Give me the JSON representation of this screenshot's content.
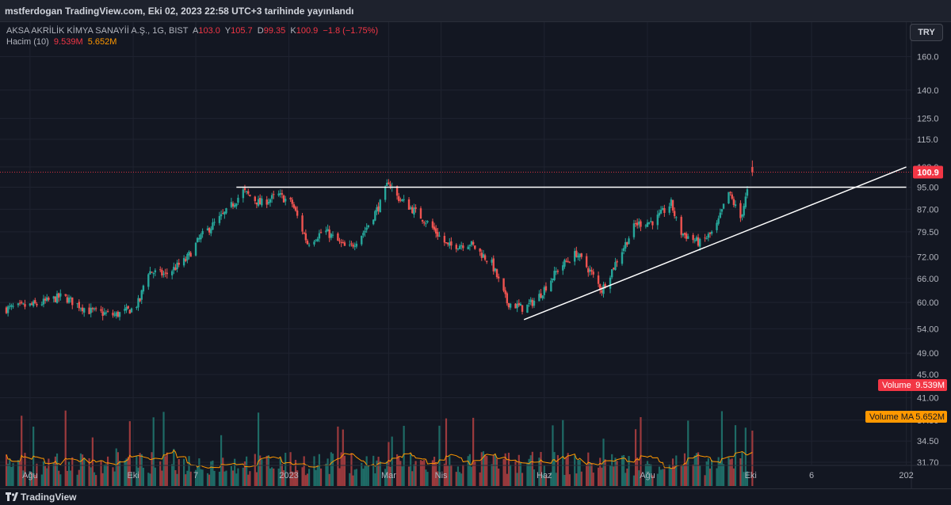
{
  "header": {
    "published": "mstferdogan TradingView.com, Eki 02, 2023 22:58 UTC+3 tarihinde yayınlandı"
  },
  "legend": {
    "symbol": "AKSA AKRİLİK KİMYA SANAYİİ A.Ş., 1G, BIST",
    "open_label": "A",
    "open": "103.0",
    "high_label": "Y",
    "high": "105.7",
    "low_label": "D",
    "low": "99.35",
    "close_label": "K",
    "close": "100.9",
    "change": "−1.8 (−1.75%)",
    "volume_label": "Hacim (10)",
    "volume": "9.539M",
    "volume_ma": "5.652M"
  },
  "currency_button": "TRY",
  "footer": {
    "brand": "TradingView"
  },
  "colors": {
    "background": "#131722",
    "up": "#26a69a",
    "down": "#ef5350",
    "volume_up": "#1e6b66",
    "volume_down": "#9c3a3d",
    "ma_line": "#ff9800",
    "trendline": "#ffffff",
    "price_tag": "#f23645"
  },
  "chart_data": {
    "type": "candlestick",
    "symbol": "AKSA",
    "interval": "1D",
    "y_scale": "log",
    "y_ticks": [
      160.0,
      140.0,
      125.0,
      115.0,
      103.0,
      95.0,
      87.0,
      79.5,
      72.0,
      66.0,
      60.0,
      54.0,
      49.0,
      45.0,
      41.0,
      37.5,
      34.5,
      31.7
    ],
    "y_tick_labels": [
      "160.0",
      "140.0",
      "125.0",
      "115.0",
      "103.0",
      "95.00",
      "87.00",
      "79.50",
      "72.00",
      "66.00",
      "60.00",
      "54.00",
      "49.00",
      "45.00",
      "41.00",
      "37.50",
      "34.50",
      "31.70"
    ],
    "x_ticks": [
      {
        "label": "Ağu",
        "date": "2022-08-01"
      },
      {
        "label": "Eki",
        "date": "2022-10-01"
      },
      {
        "label": "7",
        "date": "2022-11-07"
      },
      {
        "label": "2023",
        "date": "2023-01-01"
      },
      {
        "label": "Mar",
        "date": "2023-03-01"
      },
      {
        "label": "Nis",
        "date": "2023-04-01"
      },
      {
        "label": "Haz",
        "date": "2023-06-01"
      },
      {
        "label": "Ağu",
        "date": "2023-08-01"
      },
      {
        "label": "Eki",
        "date": "2023-10-01"
      },
      {
        "label": "6",
        "date": "2023-11-06"
      },
      {
        "label": "202",
        "date": "2024-01-01"
      }
    ],
    "price_path": [
      {
        "date": "2022-07-18",
        "close": 58.5
      },
      {
        "date": "2022-08-05",
        "close": 59.5
      },
      {
        "date": "2022-08-20",
        "close": 61.5
      },
      {
        "date": "2022-09-05",
        "close": 58.0
      },
      {
        "date": "2022-09-20",
        "close": 57.0
      },
      {
        "date": "2022-10-01",
        "close": 58.5
      },
      {
        "date": "2022-10-05",
        "close": 60.5
      },
      {
        "date": "2022-10-09",
        "close": 68.0
      },
      {
        "date": "2022-10-20",
        "close": 67.0
      },
      {
        "date": "2022-11-01",
        "close": 71.0
      },
      {
        "date": "2022-11-10",
        "close": 78.0
      },
      {
        "date": "2022-11-25",
        "close": 86.0
      },
      {
        "date": "2022-12-05",
        "close": 93.5
      },
      {
        "date": "2022-12-15",
        "close": 89.0
      },
      {
        "date": "2022-12-26",
        "close": 92.0
      },
      {
        "date": "2023-01-03",
        "close": 89.0
      },
      {
        "date": "2023-01-12",
        "close": 76.0
      },
      {
        "date": "2023-01-22",
        "close": 80.0
      },
      {
        "date": "2023-02-05",
        "close": 74.0
      },
      {
        "date": "2023-02-15",
        "close": 80.0
      },
      {
        "date": "2023-02-25",
        "close": 90.0
      },
      {
        "date": "2023-03-01",
        "close": 97.5
      },
      {
        "date": "2023-03-05",
        "close": 92.0
      },
      {
        "date": "2023-03-15",
        "close": 87.0
      },
      {
        "date": "2023-03-25",
        "close": 82.0
      },
      {
        "date": "2023-04-05",
        "close": 75.0
      },
      {
        "date": "2023-04-18",
        "close": 76.0
      },
      {
        "date": "2023-05-01",
        "close": 70.0
      },
      {
        "date": "2023-05-10",
        "close": 60.0
      },
      {
        "date": "2023-05-20",
        "close": 58.5
      },
      {
        "date": "2023-05-28",
        "close": 61.0
      },
      {
        "date": "2023-06-10",
        "close": 69.0
      },
      {
        "date": "2023-06-20",
        "close": 73.0
      },
      {
        "date": "2023-06-28",
        "close": 68.0
      },
      {
        "date": "2023-07-05",
        "close": 63.0
      },
      {
        "date": "2023-07-15",
        "close": 72.0
      },
      {
        "date": "2023-07-25",
        "close": 82.0
      },
      {
        "date": "2023-08-05",
        "close": 83.0
      },
      {
        "date": "2023-08-15",
        "close": 89.0
      },
      {
        "date": "2023-08-20",
        "close": 79.5
      },
      {
        "date": "2023-09-01",
        "close": 76.0
      },
      {
        "date": "2023-09-10",
        "close": 80.0
      },
      {
        "date": "2023-09-18",
        "close": 93.0
      },
      {
        "date": "2023-09-25",
        "close": 84.0
      },
      {
        "date": "2023-10-02",
        "close": 100.9
      }
    ],
    "annotations": {
      "resistance": {
        "price": 95.0,
        "from": "2022-12-01",
        "to": "2024-01-01"
      },
      "ascending_trendline": {
        "from": {
          "date": "2023-05-20",
          "price": 56.0
        },
        "to": {
          "date": "2024-01-01",
          "price": 103.0
        }
      }
    },
    "last_price": {
      "value": 100.9,
      "label": "100.9"
    },
    "volume_pane": {
      "volume_label": "Volume",
      "volume_value": "9.539M",
      "ma_label": "Volume MA",
      "ma_value": "5.652M"
    }
  }
}
